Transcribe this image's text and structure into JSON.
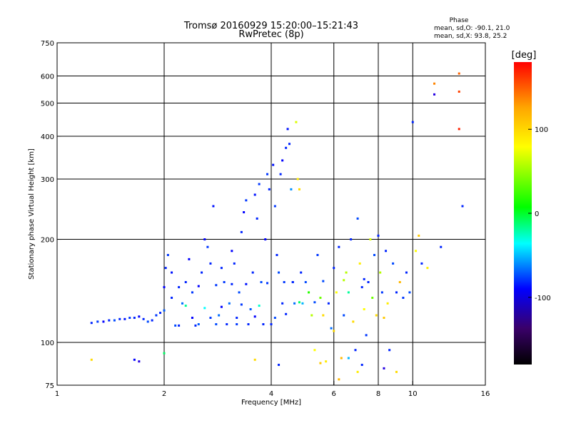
{
  "title": {
    "line1": "Tromsø 20160929 15:20:00–15:21:43",
    "line2": "RwPretec (8p)"
  },
  "phase_info": {
    "heading": "Phase",
    "o_line": "mean, sd,O: -90.1, 21.0",
    "x_line": "mean, sd,X:  93.8, 25.2"
  },
  "colorbar": {
    "unit_label": "[deg]",
    "range": [
      -180,
      180
    ],
    "tick_labels": [
      {
        "value": 100,
        "label": "100"
      },
      {
        "value": 0,
        "label": "0"
      },
      {
        "value": -100,
        "label": "-100"
      }
    ],
    "colors": {
      "red": "#ff0000",
      "orange": "#ffa500",
      "yellow": "#ffff00",
      "green": "#00ff00",
      "cyan": "#00ffff",
      "blue": "#0000ff",
      "purple": "#6a00a8",
      "black": "#000000"
    }
  },
  "chart_data": {
    "type": "scatter",
    "xlabel": "Frequency [MHz]",
    "ylabel": "Stationary phase Virtual Height [km]",
    "xscale": "log",
    "yscale": "log",
    "xlim": [
      1,
      16
    ],
    "ylim": [
      75,
      750
    ],
    "x_ticks": [
      {
        "value": 1,
        "label": "1"
      },
      {
        "value": 2,
        "label": "2"
      },
      {
        "value": 4,
        "label": "4"
      },
      {
        "value": 6,
        "label": "6"
      },
      {
        "value": 8,
        "label": "8"
      },
      {
        "value": 10,
        "label": "10"
      },
      {
        "value": 16,
        "label": "16"
      }
    ],
    "y_ticks": [
      {
        "value": 75,
        "label": "75"
      },
      {
        "value": 100,
        "label": "100"
      },
      {
        "value": 200,
        "label": "200"
      },
      {
        "value": 300,
        "label": "300"
      },
      {
        "value": 400,
        "label": "400"
      },
      {
        "value": 500,
        "label": "500"
      },
      {
        "value": 600,
        "label": "600"
      },
      {
        "value": 750,
        "label": "750"
      }
    ],
    "grid_x": [
      2,
      4,
      6,
      8,
      10
    ],
    "grid_y": [
      100,
      200,
      300,
      400,
      500,
      600
    ],
    "grid": true,
    "points": [
      [
        1.25,
        114,
        -100
      ],
      [
        1.3,
        115,
        -95
      ],
      [
        1.35,
        115,
        -110
      ],
      [
        1.4,
        116,
        -100
      ],
      [
        1.45,
        116,
        -90
      ],
      [
        1.5,
        117,
        -100
      ],
      [
        1.55,
        117,
        -105
      ],
      [
        1.6,
        118,
        -95
      ],
      [
        1.65,
        118,
        -100
      ],
      [
        1.7,
        119,
        -110
      ],
      [
        1.75,
        117,
        -100
      ],
      [
        1.8,
        115,
        -90
      ],
      [
        1.85,
        116,
        -100
      ],
      [
        1.9,
        120,
        -95
      ],
      [
        1.95,
        122,
        -100
      ],
      [
        2.0,
        124,
        -85
      ],
      [
        2.0,
        145,
        -110
      ],
      [
        2.02,
        165,
        -100
      ],
      [
        2.05,
        180,
        -95
      ],
      [
        2.1,
        160,
        -105
      ],
      [
        2.1,
        135,
        -100
      ],
      [
        2.15,
        112,
        -90
      ],
      [
        2.2,
        112,
        -100
      ],
      [
        2.25,
        130,
        -80
      ],
      [
        2.3,
        150,
        -100
      ],
      [
        2.35,
        175,
        -110
      ],
      [
        2.4,
        140,
        -95
      ],
      [
        2.45,
        112,
        -100
      ],
      [
        2.5,
        113,
        -85
      ],
      [
        2.55,
        160,
        -100
      ],
      [
        2.6,
        200,
        -110
      ],
      [
        2.65,
        190,
        -95
      ],
      [
        2.7,
        170,
        -100
      ],
      [
        2.75,
        250,
        -105
      ],
      [
        2.8,
        113,
        -90
      ],
      [
        2.85,
        120,
        -80
      ],
      [
        2.9,
        165,
        -100
      ],
      [
        2.95,
        150,
        -95
      ],
      [
        3.0,
        113,
        -100
      ],
      [
        3.05,
        130,
        -80
      ],
      [
        3.1,
        185,
        -110
      ],
      [
        3.15,
        170,
        -100
      ],
      [
        3.2,
        113,
        -95
      ],
      [
        3.25,
        140,
        -90
      ],
      [
        3.3,
        210,
        -100
      ],
      [
        3.35,
        240,
        -110
      ],
      [
        3.4,
        260,
        -95
      ],
      [
        3.45,
        113,
        -100
      ],
      [
        3.5,
        125,
        -85
      ],
      [
        3.55,
        160,
        -100
      ],
      [
        3.6,
        270,
        -105
      ],
      [
        3.65,
        230,
        -100
      ],
      [
        3.7,
        290,
        -95
      ],
      [
        3.75,
        150,
        -90
      ],
      [
        3.8,
        113,
        -100
      ],
      [
        3.85,
        200,
        -110
      ],
      [
        3.9,
        310,
        -95
      ],
      [
        3.95,
        280,
        -100
      ],
      [
        4.0,
        113,
        -100
      ],
      [
        4.05,
        330,
        -105
      ],
      [
        4.1,
        250,
        -95
      ],
      [
        4.15,
        180,
        -100
      ],
      [
        4.2,
        160,
        -90
      ],
      [
        4.25,
        310,
        -100
      ],
      [
        4.3,
        340,
        -110
      ],
      [
        4.35,
        150,
        -95
      ],
      [
        4.4,
        370,
        -100
      ],
      [
        4.45,
        420,
        -105
      ],
      [
        4.5,
        380,
        -100
      ],
      [
        4.55,
        280,
        -70
      ],
      [
        4.6,
        150,
        -90
      ],
      [
        4.65,
        130,
        -80
      ],
      [
        4.7,
        440,
        70
      ],
      [
        4.75,
        300,
        90
      ],
      [
        4.8,
        280,
        100
      ],
      [
        4.85,
        160,
        -100
      ],
      [
        4.9,
        130,
        -60
      ],
      [
        5.0,
        150,
        -90
      ],
      [
        5.1,
        140,
        20
      ],
      [
        5.2,
        120,
        60
      ],
      [
        5.3,
        95,
        80
      ],
      [
        5.4,
        180,
        -95
      ],
      [
        5.5,
        135,
        40
      ],
      [
        5.6,
        120,
        100
      ],
      [
        5.7,
        88,
        90
      ],
      [
        5.8,
        130,
        -100
      ],
      [
        5.9,
        110,
        -80
      ],
      [
        6.0,
        165,
        -100
      ],
      [
        6.0,
        108,
        100
      ],
      [
        6.1,
        140,
        80
      ],
      [
        6.2,
        190,
        -100
      ],
      [
        6.3,
        90,
        120
      ],
      [
        6.4,
        120,
        -90
      ],
      [
        6.5,
        160,
        60
      ],
      [
        6.6,
        140,
        -20
      ],
      [
        6.7,
        200,
        -100
      ],
      [
        6.8,
        115,
        100
      ],
      [
        6.9,
        95,
        -100
      ],
      [
        7.0,
        230,
        -90
      ],
      [
        7.1,
        170,
        90
      ],
      [
        7.2,
        145,
        -100
      ],
      [
        7.3,
        125,
        80
      ],
      [
        7.4,
        105,
        -95
      ],
      [
        7.5,
        150,
        -100
      ],
      [
        7.6,
        200,
        70
      ],
      [
        7.7,
        135,
        40
      ],
      [
        7.8,
        180,
        -90
      ],
      [
        7.9,
        120,
        100
      ],
      [
        8.0,
        205,
        -100
      ],
      [
        8.1,
        160,
        60
      ],
      [
        8.2,
        140,
        -95
      ],
      [
        8.3,
        118,
        110
      ],
      [
        8.4,
        185,
        -100
      ],
      [
        8.5,
        130,
        90
      ],
      [
        8.6,
        95,
        -100
      ],
      [
        8.8,
        170,
        -90
      ],
      [
        9.0,
        140,
        -100
      ],
      [
        9.2,
        150,
        120
      ],
      [
        9.4,
        135,
        -95
      ],
      [
        9.6,
        160,
        -100
      ],
      [
        9.8,
        140,
        -90
      ],
      [
        10.0,
        440,
        -100
      ],
      [
        10.2,
        185,
        80
      ],
      [
        10.4,
        205,
        110
      ],
      [
        10.6,
        170,
        -100
      ],
      [
        11.0,
        165,
        90
      ],
      [
        11.5,
        530,
        -120
      ],
      [
        11.5,
        570,
        140
      ],
      [
        12.0,
        190,
        -100
      ],
      [
        13.5,
        610,
        150
      ],
      [
        13.5,
        540,
        160
      ],
      [
        13.5,
        420,
        170
      ],
      [
        13.8,
        250,
        -100
      ],
      [
        1.65,
        89,
        -110
      ],
      [
        1.7,
        88,
        -120
      ],
      [
        1.25,
        89,
        100
      ],
      [
        2.0,
        93,
        -10
      ],
      [
        3.6,
        89,
        100
      ],
      [
        4.2,
        86,
        -100
      ],
      [
        5.5,
        87,
        110
      ],
      [
        6.6,
        90,
        -60
      ],
      [
        7.2,
        86,
        -100
      ],
      [
        8.3,
        84,
        -120
      ],
      [
        9.0,
        82,
        100
      ],
      [
        6.2,
        78,
        120
      ],
      [
        7.0,
        82,
        90
      ],
      [
        2.4,
        118,
        -110
      ],
      [
        2.7,
        118,
        -95
      ],
      [
        3.2,
        118,
        -100
      ],
      [
        3.6,
        119,
        -110
      ],
      [
        4.1,
        118,
        -90
      ],
      [
        4.4,
        121,
        -100
      ],
      [
        2.3,
        128,
        -20
      ],
      [
        2.6,
        126,
        -40
      ],
      [
        2.9,
        127,
        -110
      ],
      [
        3.3,
        129,
        -95
      ],
      [
        3.7,
        128,
        -30
      ],
      [
        4.3,
        130,
        -100
      ],
      [
        4.8,
        131,
        -10
      ],
      [
        5.3,
        131,
        -90
      ],
      [
        2.2,
        145,
        -100
      ],
      [
        2.5,
        146,
        -110
      ],
      [
        2.8,
        147,
        -95
      ],
      [
        3.1,
        148,
        -100
      ],
      [
        3.4,
        148,
        -105
      ],
      [
        3.9,
        149,
        -95
      ],
      [
        4.6,
        150,
        -100
      ],
      [
        5.6,
        151,
        -90
      ],
      [
        6.4,
        152,
        60
      ],
      [
        7.3,
        153,
        -100
      ]
    ]
  }
}
